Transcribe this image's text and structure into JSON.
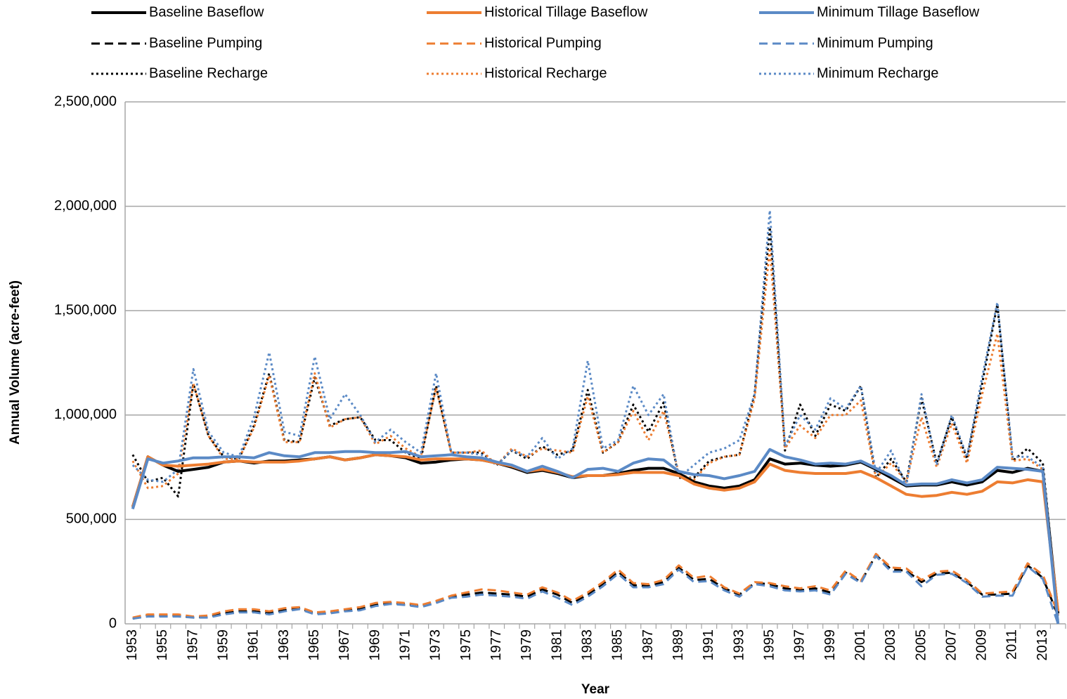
{
  "chart_data": {
    "type": "line",
    "x_label": "Year",
    "y_label": "Annual Volume (acre-feet)",
    "categories": [
      "1953",
      null,
      "1955",
      null,
      "1957",
      null,
      "1959",
      null,
      "1961",
      null,
      "1963",
      null,
      "1965",
      null,
      "1967",
      null,
      "1969",
      null,
      "1971",
      null,
      "1973",
      null,
      "1975",
      null,
      "1977",
      null,
      "1979",
      null,
      "1981",
      null,
      "1983",
      null,
      "1985",
      null,
      "1987",
      null,
      "1989",
      null,
      "1991",
      null,
      "1993",
      null,
      "1995",
      null,
      "1997",
      null,
      "1999",
      null,
      "2001",
      null,
      "2003",
      null,
      "2005",
      null,
      "2007",
      null,
      "2009",
      null,
      "2011",
      null,
      "2013",
      null
    ],
    "ylim": [
      0,
      2500000
    ],
    "yticks": [
      0,
      {
        "value": 500000,
        "label": "500,000"
      },
      {
        "value": 1000000,
        "label": "1,000,000"
      },
      {
        "value": 1500000,
        "label": "1,500,000"
      },
      {
        "value": 2000000,
        "label": "2,000,000"
      },
      {
        "value": 2500000,
        "label": "2,500,000"
      }
    ],
    "grid": true,
    "legend": "top",
    "series": [
      {
        "name": "Baseline Baseflow",
        "color": "#000000",
        "dash": "solid",
        "values": [
          560000,
          800000,
          760000,
          730000,
          740000,
          750000,
          775000,
          780000,
          770000,
          780000,
          780000,
          785000,
          790000,
          800000,
          785000,
          795000,
          810000,
          805000,
          795000,
          770000,
          775000,
          785000,
          790000,
          785000,
          770000,
          750000,
          725000,
          735000,
          720000,
          700000,
          710000,
          710000,
          720000,
          735000,
          745000,
          745000,
          720000,
          680000,
          660000,
          650000,
          660000,
          690000,
          790000,
          765000,
          770000,
          760000,
          755000,
          760000,
          775000,
          740000,
          700000,
          660000,
          665000,
          665000,
          680000,
          665000,
          680000,
          735000,
          725000,
          745000,
          730000,
          50000
        ]
      },
      {
        "name": "Historical Tillage Baseflow",
        "color": "#ED7D31",
        "dash": "solid",
        "values": [
          560000,
          800000,
          760000,
          755000,
          760000,
          765000,
          775000,
          780000,
          775000,
          775000,
          775000,
          780000,
          790000,
          800000,
          785000,
          795000,
          810000,
          805000,
          800000,
          785000,
          790000,
          790000,
          790000,
          785000,
          770000,
          755000,
          730000,
          740000,
          725000,
          705000,
          710000,
          710000,
          715000,
          725000,
          725000,
          725000,
          710000,
          670000,
          650000,
          640000,
          650000,
          680000,
          765000,
          735000,
          725000,
          720000,
          720000,
          720000,
          730000,
          700000,
          660000,
          620000,
          610000,
          615000,
          630000,
          620000,
          635000,
          680000,
          675000,
          690000,
          680000,
          60000
        ]
      },
      {
        "name": "Minimum Tillage Baseflow",
        "color": "#5B8AC6",
        "dash": "solid",
        "values": [
          550000,
          790000,
          770000,
          780000,
          795000,
          795000,
          800000,
          800000,
          795000,
          820000,
          805000,
          800000,
          820000,
          820000,
          825000,
          825000,
          820000,
          820000,
          825000,
          800000,
          805000,
          810000,
          800000,
          795000,
          775000,
          760000,
          730000,
          755000,
          730000,
          700000,
          740000,
          745000,
          730000,
          770000,
          790000,
          785000,
          730000,
          715000,
          710000,
          695000,
          710000,
          730000,
          835000,
          800000,
          785000,
          765000,
          770000,
          765000,
          780000,
          745000,
          710000,
          665000,
          670000,
          670000,
          690000,
          675000,
          690000,
          750000,
          745000,
          740000,
          730000,
          0
        ]
      },
      {
        "name": "Baseline Pumping",
        "color": "#000000",
        "dash": "dash",
        "values": [
          25000,
          40000,
          40000,
          40000,
          30000,
          35000,
          50000,
          60000,
          60000,
          50000,
          65000,
          75000,
          50000,
          55000,
          65000,
          70000,
          90000,
          100000,
          95000,
          85000,
          105000,
          130000,
          140000,
          150000,
          145000,
          140000,
          130000,
          165000,
          140000,
          100000,
          140000,
          190000,
          250000,
          185000,
          180000,
          200000,
          270000,
          210000,
          215000,
          170000,
          140000,
          195000,
          190000,
          170000,
          160000,
          170000,
          150000,
          245000,
          200000,
          330000,
          260000,
          255000,
          200000,
          240000,
          245000,
          200000,
          140000,
          140000,
          145000,
          280000,
          220000,
          40000
        ]
      },
      {
        "name": "Historical Pumping",
        "color": "#ED7D31",
        "dash": "dash",
        "values": [
          30000,
          45000,
          45000,
          45000,
          35000,
          40000,
          60000,
          70000,
          70000,
          60000,
          75000,
          80000,
          55000,
          60000,
          70000,
          80000,
          100000,
          105000,
          100000,
          90000,
          110000,
          135000,
          150000,
          165000,
          160000,
          150000,
          140000,
          175000,
          150000,
          110000,
          150000,
          200000,
          260000,
          195000,
          190000,
          210000,
          280000,
          220000,
          230000,
          175000,
          145000,
          200000,
          195000,
          180000,
          170000,
          180000,
          160000,
          255000,
          205000,
          335000,
          270000,
          265000,
          210000,
          250000,
          255000,
          210000,
          145000,
          150000,
          155000,
          290000,
          235000,
          50000
        ]
      },
      {
        "name": "Minimum Pumping",
        "color": "#5B8AC6",
        "dash": "dash",
        "values": [
          25000,
          35000,
          35000,
          35000,
          30000,
          30000,
          45000,
          55000,
          55000,
          45000,
          60000,
          70000,
          45000,
          50000,
          60000,
          65000,
          85000,
          95000,
          90000,
          80000,
          100000,
          125000,
          130000,
          140000,
          135000,
          130000,
          120000,
          155000,
          125000,
          90000,
          130000,
          180000,
          240000,
          175000,
          175000,
          190000,
          260000,
          200000,
          205000,
          160000,
          130000,
          190000,
          180000,
          160000,
          155000,
          160000,
          140000,
          240000,
          195000,
          325000,
          250000,
          250000,
          180000,
          235000,
          240000,
          195000,
          130000,
          135000,
          135000,
          275000,
          215000,
          0
        ]
      },
      {
        "name": "Baseline Recharge",
        "color": "#000000",
        "dash": "dot",
        "values": [
          810000,
          680000,
          700000,
          610000,
          1150000,
          900000,
          800000,
          790000,
          950000,
          1200000,
          880000,
          870000,
          1180000,
          950000,
          980000,
          990000,
          880000,
          880000,
          820000,
          790000,
          1140000,
          820000,
          820000,
          820000,
          760000,
          830000,
          790000,
          850000,
          810000,
          830000,
          1120000,
          820000,
          870000,
          1050000,
          920000,
          1060000,
          700000,
          700000,
          780000,
          800000,
          810000,
          1100000,
          1900000,
          830000,
          1050000,
          900000,
          1050000,
          1020000,
          1140000,
          700000,
          790000,
          680000,
          1080000,
          770000,
          990000,
          790000,
          1150000,
          1530000,
          780000,
          840000,
          770000,
          40000
        ]
      },
      {
        "name": "Historical Recharge",
        "color": "#ED7D31",
        "dash": "dot",
        "values": [
          780000,
          650000,
          660000,
          720000,
          1150000,
          900000,
          790000,
          790000,
          940000,
          1190000,
          870000,
          870000,
          1200000,
          940000,
          980000,
          990000,
          860000,
          900000,
          840000,
          800000,
          1130000,
          820000,
          820000,
          830000,
          760000,
          840000,
          800000,
          840000,
          830000,
          820000,
          1090000,
          820000,
          870000,
          1020000,
          880000,
          1020000,
          720000,
          690000,
          770000,
          800000,
          810000,
          1080000,
          1800000,
          840000,
          950000,
          890000,
          1000000,
          1000000,
          1070000,
          700000,
          770000,
          680000,
          990000,
          750000,
          960000,
          770000,
          1100000,
          1390000,
          780000,
          790000,
          740000,
          40000
        ]
      },
      {
        "name": "Minimum Recharge",
        "color": "#5B8AC6",
        "dash": "dot",
        "values": [
          760000,
          690000,
          680000,
          740000,
          1220000,
          920000,
          820000,
          800000,
          990000,
          1300000,
          920000,
          900000,
          1280000,
          980000,
          1100000,
          1000000,
          870000,
          930000,
          870000,
          820000,
          1200000,
          820000,
          820000,
          810000,
          760000,
          830000,
          800000,
          890000,
          790000,
          840000,
          1260000,
          840000,
          880000,
          1140000,
          1000000,
          1100000,
          700000,
          760000,
          820000,
          840000,
          880000,
          1100000,
          1980000,
          850000,
          1000000,
          930000,
          1080000,
          1030000,
          1140000,
          720000,
          830000,
          660000,
          1100000,
          760000,
          1000000,
          800000,
          1180000,
          1540000,
          800000,
          800000,
          750000,
          20000
        ]
      }
    ]
  }
}
